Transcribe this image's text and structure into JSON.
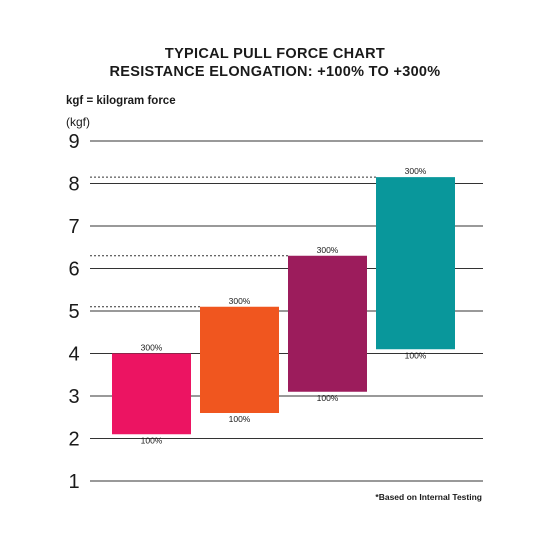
{
  "title_line1": "TYPICAL PULL FORCE CHART",
  "title_line2": "RESISTANCE ELONGATION: +100% TO +300%",
  "unit_note": "kgf = kilogram force",
  "y_unit": "(kgf)",
  "footnote": "*Based on Internal Testing",
  "colors": {
    "grid": "#333333",
    "text": "#1a1a1a"
  },
  "chart_data": {
    "type": "bar",
    "subtype": "floating-range",
    "title": "TYPICAL PULL FORCE CHART",
    "subtitle": "RESISTANCE ELONGATION: +100% TO +300%",
    "ylabel": "(kgf)",
    "ylim": [
      1,
      9
    ],
    "yticks": [
      1,
      2,
      3,
      4,
      5,
      6,
      7,
      8,
      9
    ],
    "grid": true,
    "bars": [
      {
        "low": 2.1,
        "high": 4.0,
        "low_label": "100%",
        "high_label": "300%",
        "color": "#ec1462"
      },
      {
        "low": 2.6,
        "high": 5.1,
        "low_label": "100%",
        "high_label": "300%",
        "color": "#f0561f"
      },
      {
        "low": 3.1,
        "high": 6.3,
        "low_label": "100%",
        "high_label": "300%",
        "color": "#9c1c5c"
      },
      {
        "low": 4.1,
        "high": 8.15,
        "low_label": "100%",
        "high_label": "300%",
        "color": "#09979b"
      }
    ]
  }
}
